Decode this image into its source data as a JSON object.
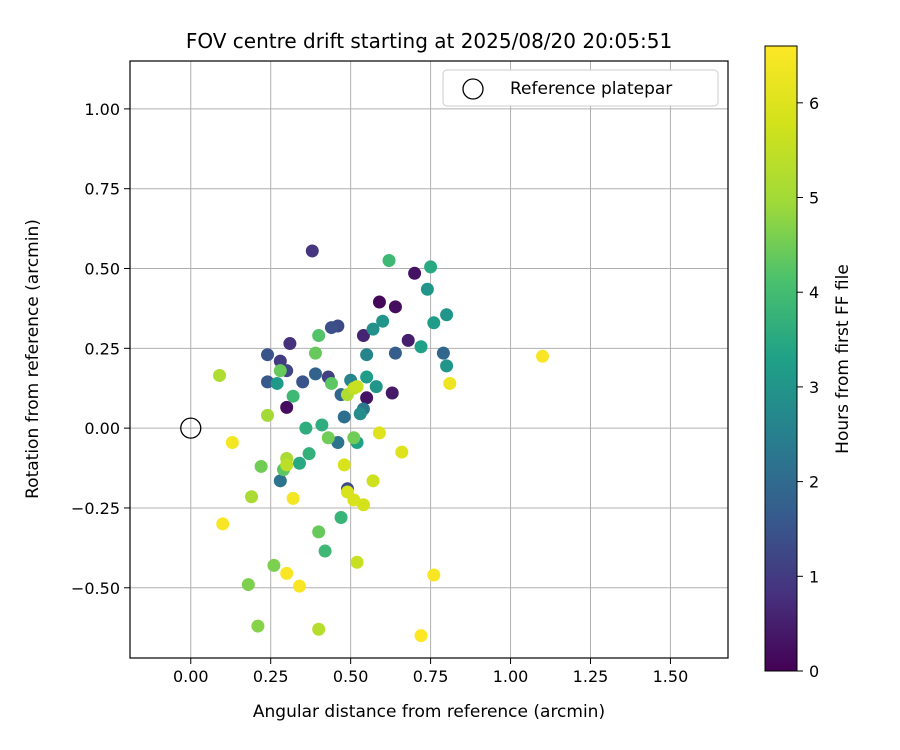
{
  "chart_data": {
    "type": "scatter",
    "title": "FOV centre drift starting at 2025/08/20 20:05:51",
    "xlabel": "Angular distance from reference (arcmin)",
    "ylabel": "Rotation from reference (arcmin)",
    "xlim": [
      -0.19,
      1.68
    ],
    "ylim": [
      -0.72,
      1.15
    ],
    "xticks": [
      0.0,
      0.25,
      0.5,
      0.75,
      1.0,
      1.25,
      1.5
    ],
    "xtick_labels": [
      "0.00",
      "0.25",
      "0.50",
      "0.75",
      "1.00",
      "1.25",
      "1.50"
    ],
    "yticks": [
      -0.5,
      -0.25,
      0.0,
      0.25,
      0.5,
      0.75,
      1.0
    ],
    "ytick_labels": [
      "−0.50",
      "−0.25",
      "0.00",
      "0.25",
      "0.50",
      "0.75",
      "1.00"
    ],
    "grid": true,
    "legend": {
      "placement": "top-right",
      "label": "Reference platepar"
    },
    "reference_point": {
      "x": 0.0,
      "y": 0.0
    },
    "colorbar": {
      "label": "Hours from first FF file",
      "range": [
        0,
        6.6
      ],
      "ticks": [
        0,
        1,
        2,
        3,
        4,
        5,
        6
      ],
      "tick_labels": [
        "0",
        "1",
        "2",
        "3",
        "4",
        "5",
        "6"
      ],
      "colormap": "viridis"
    },
    "points": [
      {
        "x": 0.38,
        "y": 0.555,
        "h": 0.9
      },
      {
        "x": 0.59,
        "y": 0.395,
        "h": 0.1
      },
      {
        "x": 0.64,
        "y": 0.38,
        "h": 0.2
      },
      {
        "x": 0.7,
        "y": 0.485,
        "h": 0.3
      },
      {
        "x": 0.68,
        "y": 0.275,
        "h": 0.5
      },
      {
        "x": 0.54,
        "y": 0.29,
        "h": 0.6
      },
      {
        "x": 0.63,
        "y": 0.11,
        "h": 0.4
      },
      {
        "x": 0.55,
        "y": 0.095,
        "h": 0.3
      },
      {
        "x": 0.3,
        "y": 0.065,
        "h": 0.2
      },
      {
        "x": 0.31,
        "y": 0.265,
        "h": 0.8
      },
      {
        "x": 0.28,
        "y": 0.21,
        "h": 1.0
      },
      {
        "x": 0.3,
        "y": 0.18,
        "h": 1.2
      },
      {
        "x": 0.43,
        "y": 0.16,
        "h": 1.1
      },
      {
        "x": 0.46,
        "y": 0.32,
        "h": 1.3
      },
      {
        "x": 0.44,
        "y": 0.315,
        "h": 1.4
      },
      {
        "x": 0.24,
        "y": 0.23,
        "h": 1.5
      },
      {
        "x": 0.24,
        "y": 0.145,
        "h": 1.6
      },
      {
        "x": 0.35,
        "y": 0.145,
        "h": 1.5
      },
      {
        "x": 0.39,
        "y": 0.17,
        "h": 1.8
      },
      {
        "x": 0.49,
        "y": -0.19,
        "h": 1.3
      },
      {
        "x": 0.64,
        "y": 0.235,
        "h": 1.7
      },
      {
        "x": 0.47,
        "y": 0.105,
        "h": 1.9
      },
      {
        "x": 0.79,
        "y": 0.235,
        "h": 1.9
      },
      {
        "x": 0.48,
        "y": 0.035,
        "h": 2.1
      },
      {
        "x": 0.46,
        "y": -0.045,
        "h": 2.2
      },
      {
        "x": 0.54,
        "y": 0.06,
        "h": 2.3
      },
      {
        "x": 0.28,
        "y": -0.165,
        "h": 2.2
      },
      {
        "x": 0.5,
        "y": 0.15,
        "h": 2.6
      },
      {
        "x": 0.55,
        "y": 0.23,
        "h": 2.6
      },
      {
        "x": 0.53,
        "y": 0.045,
        "h": 2.8
      },
      {
        "x": 0.57,
        "y": 0.31,
        "h": 2.9
      },
      {
        "x": 0.6,
        "y": 0.335,
        "h": 3.0
      },
      {
        "x": 0.74,
        "y": 0.435,
        "h": 3.0
      },
      {
        "x": 0.8,
        "y": 0.355,
        "h": 3.0
      },
      {
        "x": 0.76,
        "y": 0.33,
        "h": 3.2
      },
      {
        "x": 0.72,
        "y": 0.255,
        "h": 3.3
      },
      {
        "x": 0.8,
        "y": 0.195,
        "h": 3.0
      },
      {
        "x": 0.27,
        "y": 0.14,
        "h": 3.1
      },
      {
        "x": 0.58,
        "y": 0.13,
        "h": 3.0
      },
      {
        "x": 0.55,
        "y": 0.16,
        "h": 3.2
      },
      {
        "x": 0.52,
        "y": -0.045,
        "h": 3.3
      },
      {
        "x": 0.75,
        "y": 0.505,
        "h": 3.5
      },
      {
        "x": 0.34,
        "y": -0.11,
        "h": 3.5
      },
      {
        "x": 0.36,
        "y": 0.0,
        "h": 3.6
      },
      {
        "x": 0.41,
        "y": 0.01,
        "h": 3.6
      },
      {
        "x": 0.37,
        "y": -0.08,
        "h": 3.7
      },
      {
        "x": 0.32,
        "y": 0.1,
        "h": 3.9
      },
      {
        "x": 0.62,
        "y": 0.525,
        "h": 3.9
      },
      {
        "x": 0.47,
        "y": -0.28,
        "h": 3.8
      },
      {
        "x": 0.42,
        "y": -0.385,
        "h": 3.9
      },
      {
        "x": 0.4,
        "y": 0.29,
        "h": 4.2
      },
      {
        "x": 0.39,
        "y": 0.235,
        "h": 4.4
      },
      {
        "x": 0.44,
        "y": 0.14,
        "h": 4.3
      },
      {
        "x": 0.28,
        "y": 0.18,
        "h": 4.4
      },
      {
        "x": 0.29,
        "y": -0.13,
        "h": 4.3
      },
      {
        "x": 0.4,
        "y": -0.325,
        "h": 4.4
      },
      {
        "x": 0.43,
        "y": -0.03,
        "h": 4.5
      },
      {
        "x": 0.51,
        "y": -0.03,
        "h": 4.5
      },
      {
        "x": 0.22,
        "y": -0.12,
        "h": 4.5
      },
      {
        "x": 0.26,
        "y": -0.43,
        "h": 4.6
      },
      {
        "x": 0.18,
        "y": -0.49,
        "h": 4.6
      },
      {
        "x": 0.21,
        "y": -0.62,
        "h": 4.7
      },
      {
        "x": 0.24,
        "y": 0.04,
        "h": 5.0
      },
      {
        "x": 0.3,
        "y": -0.095,
        "h": 5.1
      },
      {
        "x": 0.19,
        "y": -0.215,
        "h": 5.1
      },
      {
        "x": 0.09,
        "y": 0.165,
        "h": 5.2
      },
      {
        "x": 0.49,
        "y": 0.105,
        "h": 5.2
      },
      {
        "x": 0.4,
        "y": -0.63,
        "h": 5.3
      },
      {
        "x": 0.3,
        "y": -0.115,
        "h": 5.4
      },
      {
        "x": 0.51,
        "y": 0.125,
        "h": 5.5
      },
      {
        "x": 0.52,
        "y": 0.13,
        "h": 5.6
      },
      {
        "x": 0.52,
        "y": -0.42,
        "h": 5.6
      },
      {
        "x": 0.57,
        "y": -0.165,
        "h": 5.7
      },
      {
        "x": 0.54,
        "y": -0.24,
        "h": 5.8
      },
      {
        "x": 0.51,
        "y": -0.225,
        "h": 5.9
      },
      {
        "x": 0.48,
        "y": -0.115,
        "h": 5.9
      },
      {
        "x": 0.49,
        "y": -0.2,
        "h": 5.9
      },
      {
        "x": 0.59,
        "y": -0.015,
        "h": 6.0
      },
      {
        "x": 0.66,
        "y": -0.075,
        "h": 6.0
      },
      {
        "x": 0.81,
        "y": 0.14,
        "h": 6.3
      },
      {
        "x": 1.1,
        "y": 0.225,
        "h": 6.5
      },
      {
        "x": 0.13,
        "y": -0.045,
        "h": 6.4
      },
      {
        "x": 0.1,
        "y": -0.3,
        "h": 6.5
      },
      {
        "x": 0.32,
        "y": -0.22,
        "h": 6.4
      },
      {
        "x": 0.3,
        "y": -0.455,
        "h": 6.5
      },
      {
        "x": 0.34,
        "y": -0.495,
        "h": 6.5
      },
      {
        "x": 0.76,
        "y": -0.46,
        "h": 6.5
      },
      {
        "x": 0.72,
        "y": -0.65,
        "h": 6.6
      }
    ]
  }
}
